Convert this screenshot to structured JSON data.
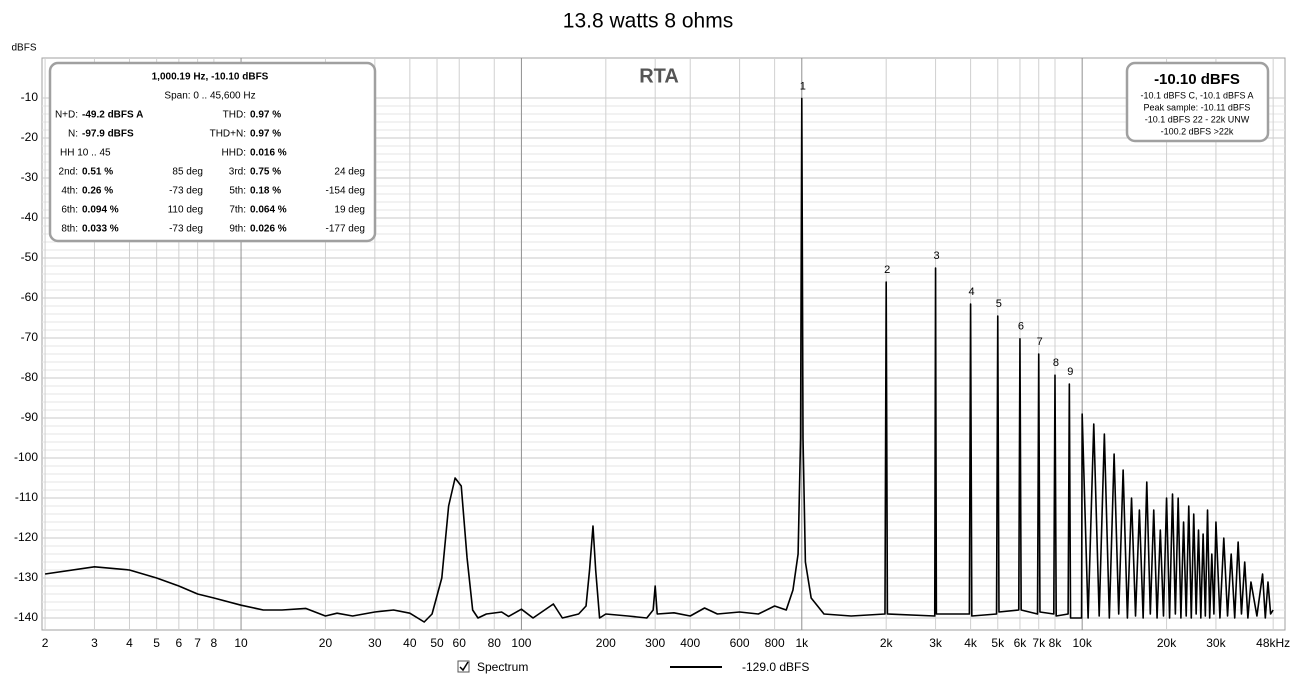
{
  "chart_data": {
    "type": "line",
    "title": "13.8 watts 8 ohms",
    "panel_title": "RTA",
    "ylabel": "dBFS",
    "log_x": true,
    "grid": true,
    "xlim": [
      1.95,
      52900
    ],
    "ylim": [
      -143,
      0
    ],
    "yticks": [
      -10,
      -20,
      -30,
      -40,
      -50,
      -60,
      -70,
      -80,
      -90,
      -100,
      -110,
      -120,
      -130,
      -140
    ],
    "xticks": [
      2,
      3,
      4,
      5,
      6,
      7,
      8,
      10,
      20,
      30,
      40,
      50,
      60,
      80,
      100,
      200,
      300,
      400,
      600,
      800,
      {
        "value": 1000,
        "label": "1k"
      },
      {
        "value": 2000,
        "label": "2k"
      },
      {
        "value": 3000,
        "label": "3k"
      },
      {
        "value": 4000,
        "label": "4k"
      },
      {
        "value": 5000,
        "label": "5k"
      },
      {
        "value": 6000,
        "label": "6k"
      },
      {
        "value": 7000,
        "label": "7k"
      },
      {
        "value": 8000,
        "label": "8k"
      },
      {
        "value": 10000,
        "label": "10k"
      },
      {
        "value": 20000,
        "label": "20k"
      },
      {
        "value": 30000,
        "label": "30k"
      },
      {
        "value": 48000,
        "label": "48kHz"
      }
    ],
    "x": [
      2,
      3,
      4,
      5,
      6,
      7,
      8,
      10,
      12,
      14,
      17,
      20,
      22,
      25,
      30,
      35,
      40,
      45,
      48,
      52,
      55,
      58,
      61,
      64,
      67,
      70,
      75,
      85,
      90,
      100,
      110,
      130,
      140,
      160,
      170,
      175,
      180,
      184,
      190,
      200,
      240,
      280,
      295,
      300,
      305,
      350,
      400,
      450,
      500,
      600,
      700,
      800,
      880,
      930,
      970,
      990,
      1000,
      1010,
      1030,
      1080,
      1200,
      1500,
      1980,
      2000,
      2020,
      2980,
      3000,
      3020,
      3960,
      4000,
      4040,
      4950,
      5000,
      5050,
      5940,
      6000,
      6060,
      6930,
      7000,
      7070,
      7920,
      8000,
      8080,
      8910,
      9000,
      9090,
      9950,
      10000,
      10500,
      11000,
      11500,
      12000,
      12500,
      13000,
      13500,
      14000,
      14500,
      15000,
      15500,
      16000,
      16500,
      17000,
      17500,
      18000,
      18500,
      19000,
      19500,
      20000,
      20500,
      21000,
      21500,
      22000,
      22500,
      23000,
      23500,
      24000,
      24500,
      25000,
      25500,
      26000,
      26500,
      27000,
      27500,
      28000,
      28500,
      29000,
      29500,
      30000,
      31000,
      32000,
      33000,
      34000,
      35000,
      36000,
      37000,
      38000,
      39000,
      40000,
      42000,
      44000,
      45000,
      46000,
      47000,
      48000
    ],
    "series": [
      {
        "name": "Spectrum",
        "color": "#000000",
        "legend_value": "-129.0 dBFS",
        "values": [
          -129,
          -127.2,
          -128,
          -130,
          -132,
          -134,
          -135,
          -136.8,
          -138,
          -138,
          -137.6,
          -139.5,
          -138.8,
          -139.5,
          -138.5,
          -138,
          -138.8,
          -141,
          -139,
          -130,
          -112,
          -105,
          -107,
          -125,
          -138,
          -140,
          -139,
          -138.5,
          -139.6,
          -137.8,
          -140,
          -136.5,
          -140,
          -139,
          -137,
          -128,
          -117,
          -128,
          -140,
          -139,
          -139.5,
          -140,
          -138,
          -132,
          -139,
          -138.7,
          -139.5,
          -137.5,
          -139,
          -138.5,
          -139,
          -137,
          -138,
          -133,
          -124,
          -95,
          -10.1,
          -95,
          -126,
          -135,
          -139,
          -139.5,
          -139,
          -56,
          -139,
          -139.5,
          -52.5,
          -139,
          -139,
          -61.5,
          -139.5,
          -139,
          -64.5,
          -138.5,
          -138,
          -70.2,
          -138,
          -139,
          -74,
          -138.5,
          -139,
          -79.3,
          -139.5,
          -139,
          -81.5,
          -140,
          -140,
          -89,
          -140,
          -91.5,
          -139.5,
          -94,
          -140,
          -99,
          -139,
          -103,
          -140,
          -110,
          -139.5,
          -113,
          -140,
          -106,
          -139,
          -113,
          -140,
          -118,
          -139.5,
          -110,
          -140,
          -109,
          -139,
          -110,
          -140,
          -116,
          -139.5,
          -112,
          -140,
          -114,
          -139,
          -118,
          -140,
          -119,
          -139.5,
          -113,
          -140,
          -124,
          -139,
          -116,
          -140,
          -120,
          -139.5,
          -124,
          -140,
          -121,
          -139,
          -126,
          -140,
          -131,
          -139.5,
          -129,
          -140,
          -131,
          -139,
          -138
        ]
      }
    ],
    "harmonics": {
      "labels": [
        "1",
        "2",
        "3",
        "4",
        "5",
        "6",
        "7",
        "8",
        "9"
      ],
      "x": [
        1000,
        2000,
        3000,
        4000,
        5000,
        6000,
        7000,
        8000,
        9000
      ],
      "values": [
        -10.1,
        -56,
        -52.5,
        -61.5,
        -64.5,
        -70.2,
        -74,
        -79.3,
        -81.5
      ]
    },
    "info_box": {
      "lines": [
        "1,000.19 Hz, -10.10 dBFS",
        "Span: 0 .. 45,600 Hz"
      ],
      "stats": [
        {
          "label": "N+D:",
          "value": "-49.2 dBFS A"
        },
        {
          "label": "THD:",
          "value": "0.97 %"
        },
        {
          "label": "N:",
          "value": "-97.9 dBFS"
        },
        {
          "label": "THD+N:",
          "value": "0.97 %"
        },
        {
          "label": "HH 10 .. 45"
        },
        {
          "label": "HHD:",
          "value": "0.016 %"
        }
      ],
      "harmonics": [
        {
          "label": "2nd:",
          "value": "0.51 %",
          "phase": "85 deg"
        },
        {
          "label": "3rd:",
          "value": "0.75 %",
          "phase": "24 deg"
        },
        {
          "label": "4th:",
          "value": "0.26 %",
          "phase": "-73 deg"
        },
        {
          "label": "5th:",
          "value": "0.18 %",
          "phase": "-154 deg"
        },
        {
          "label": "6th:",
          "value": "0.094 %",
          "phase": "110 deg"
        },
        {
          "label": "7th:",
          "value": "0.064 %",
          "phase": "19 deg"
        },
        {
          "label": "8th:",
          "value": "0.033 %",
          "phase": "-73 deg"
        },
        {
          "label": "9th:",
          "value": "0.026 %",
          "phase": "-177 deg"
        }
      ]
    },
    "level_box": {
      "headline": "-10.10 dBFS",
      "lines": [
        "-10.1 dBFS C, -10.1 dBFS A",
        "Peak sample: -10.11 dBFS",
        "-10.1 dBFS 22 - 22k UNW",
        "-100.2 dBFS >22k"
      ]
    }
  }
}
